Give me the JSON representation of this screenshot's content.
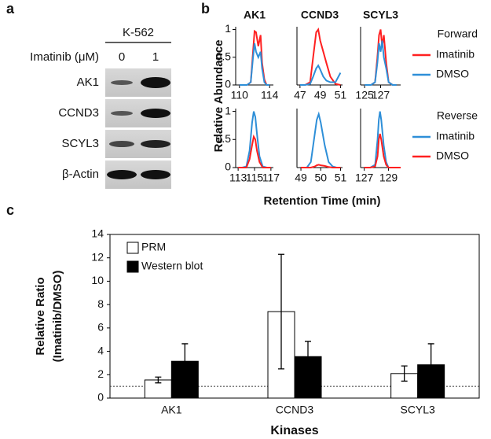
{
  "panel_labels": [
    "a",
    "b",
    "c"
  ],
  "western_blot": {
    "cell_line": "K-562",
    "treatment_label": "Imatinib (μM)",
    "doses": [
      "0",
      "1"
    ],
    "proteins": [
      "AK1",
      "CCND3",
      "SCYL3",
      "β-Actin"
    ]
  },
  "figure_b": {
    "ylabel": "Relative Abundance",
    "xlabel": "Retention Time (min)"
  },
  "chart_data": [
    {
      "type": "line",
      "title": "AK1",
      "x": [
        110,
        111,
        111.5,
        111.8,
        112,
        112.2,
        112.5,
        112.8,
        113,
        113.3,
        113.6,
        114
      ],
      "xlim": [
        109.5,
        114.5
      ],
      "xticks": [
        110,
        114
      ],
      "ylim": [
        0,
        1.05
      ],
      "yticks": [
        0,
        0.5,
        1
      ],
      "series": [
        {
          "color": "#ff2020",
          "values": [
            0,
            0,
            0.05,
            0.6,
            0.97,
            0.95,
            0.7,
            0.9,
            0.4,
            0.1,
            0,
            0
          ]
        },
        {
          "color": "#2e8fd8",
          "values": [
            0,
            0,
            0.05,
            0.5,
            0.75,
            0.6,
            0.5,
            0.6,
            0.3,
            0.05,
            0,
            0
          ]
        }
      ]
    },
    {
      "type": "line",
      "title": "CCND3",
      "x": [
        47,
        47.5,
        48,
        48.3,
        48.6,
        48.8,
        49,
        49.3,
        49.6,
        50,
        50.5,
        51
      ],
      "xlim": [
        46.7,
        51.2
      ],
      "xticks": [
        47,
        49,
        51
      ],
      "ylim": [
        0,
        1.05
      ],
      "series": [
        {
          "color": "#ff2020",
          "values": [
            0,
            0,
            0.05,
            0.5,
            0.95,
            1.0,
            0.8,
            0.6,
            0.4,
            0.15,
            0.02,
            0
          ]
        },
        {
          "color": "#2e8fd8",
          "values": [
            0,
            0,
            0.02,
            0.15,
            0.3,
            0.35,
            0.28,
            0.15,
            0.08,
            0.05,
            0.05,
            0.22
          ]
        }
      ]
    },
    {
      "type": "line",
      "title": "SCYL3",
      "x": [
        125,
        125.8,
        126.3,
        126.6,
        126.8,
        127,
        127.2,
        127.4,
        127.7,
        128,
        128.5,
        129
      ],
      "xlim": [
        124.5,
        129.5
      ],
      "xticks": [
        125,
        127
      ],
      "ylim": [
        0,
        1.05
      ],
      "legend_title": "Forward",
      "series": [
        {
          "name": "Imatinib",
          "color": "#ff2020",
          "values": [
            0,
            0,
            0.05,
            0.5,
            0.9,
            1.0,
            0.7,
            0.9,
            0.4,
            0.05,
            0,
            0
          ]
        },
        {
          "name": "DMSO",
          "color": "#2e8fd8",
          "values": [
            0,
            0,
            0.05,
            0.4,
            0.75,
            0.6,
            0.8,
            0.5,
            0.3,
            0.05,
            0,
            0
          ]
        }
      ]
    },
    {
      "type": "line",
      "x": [
        113,
        113.5,
        114,
        114.4,
        114.7,
        114.9,
        115.1,
        115.3,
        115.6,
        116,
        116.5,
        117
      ],
      "xlim": [
        112.7,
        117.3
      ],
      "xticks": [
        113,
        115,
        117
      ],
      "ylim": [
        0,
        1.05
      ],
      "yticks": [
        0,
        0.5,
        1
      ],
      "series": [
        {
          "color": "#2e8fd8",
          "values": [
            0,
            0,
            0.02,
            0.3,
            0.8,
            1.0,
            0.9,
            0.6,
            0.2,
            0.02,
            0,
            0
          ]
        },
        {
          "color": "#ff2020",
          "values": [
            0,
            0,
            0,
            0.15,
            0.4,
            0.55,
            0.5,
            0.3,
            0.1,
            0,
            0,
            0
          ]
        }
      ]
    },
    {
      "type": "line",
      "x": [
        49,
        49.3,
        49.5,
        49.7,
        49.8,
        49.9,
        50,
        50.2,
        50.4,
        50.6,
        50.8,
        51
      ],
      "xlim": [
        48.8,
        51.1
      ],
      "xticks": [
        49,
        50,
        51
      ],
      "ylim": [
        0,
        1.05
      ],
      "series": [
        {
          "color": "#2e8fd8",
          "values": [
            0,
            0,
            0.1,
            0.6,
            0.85,
            0.95,
            0.8,
            0.4,
            0.1,
            0.02,
            0,
            0
          ]
        },
        {
          "color": "#ff2020",
          "values": [
            0,
            0,
            0,
            0.02,
            0.04,
            0.05,
            0.04,
            0.03,
            0.01,
            0,
            0,
            0
          ]
        }
      ]
    },
    {
      "type": "line",
      "x": [
        127,
        127.5,
        127.9,
        128.1,
        128.2,
        128.3,
        128.4,
        128.6,
        128.8,
        129,
        129.5,
        130
      ],
      "xlim": [
        126.7,
        130
      ],
      "xticks": [
        127,
        129
      ],
      "ylim": [
        0,
        1.05
      ],
      "legend_title": "Reverse",
      "series": [
        {
          "name": "Imatinib",
          "color": "#2e8fd8",
          "values": [
            0,
            0,
            0.05,
            0.5,
            0.85,
            1.0,
            0.85,
            0.4,
            0.1,
            0,
            0,
            0
          ]
        },
        {
          "name": "DMSO",
          "color": "#ff2020",
          "values": [
            0,
            0,
            0.02,
            0.2,
            0.5,
            0.6,
            0.5,
            0.2,
            0.05,
            0,
            0,
            0
          ]
        }
      ]
    },
    {
      "type": "bar",
      "ylabel": [
        "Relative Ratio",
        "(Imatinib/DMSO)"
      ],
      "xlabel": "Kinases",
      "categories": [
        "AK1",
        "CCND3",
        "SCYL3"
      ],
      "ylim": [
        0,
        14
      ],
      "yticks": [
        0,
        2,
        4,
        6,
        8,
        10,
        12,
        14
      ],
      "reference_line": 1,
      "series": [
        {
          "name": "PRM",
          "color": "#ffffff",
          "values": [
            1.55,
            7.4,
            2.1
          ],
          "errors": [
            0.25,
            4.9,
            0.65
          ]
        },
        {
          "name": "Western blot",
          "color": "#000000",
          "values": [
            3.15,
            3.55,
            2.85
          ],
          "errors": [
            1.5,
            1.3,
            1.8
          ]
        }
      ]
    }
  ]
}
